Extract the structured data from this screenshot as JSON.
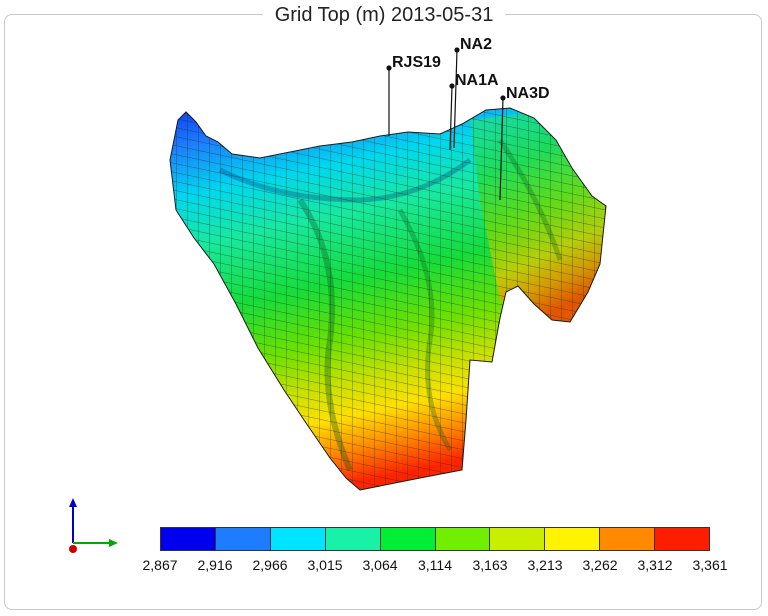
{
  "title": "Grid Top (m) 2013-05-31",
  "wells": [
    {
      "name": "RJS19"
    },
    {
      "name": "NA2"
    },
    {
      "name": "NA1A"
    },
    {
      "name": "NA3D"
    }
  ],
  "colorbar": {
    "colors": [
      "#0000ee",
      "#1e7dff",
      "#00e5ff",
      "#19f0a8",
      "#00ee35",
      "#72ee00",
      "#c9ee00",
      "#fff300",
      "#ff8a00",
      "#ff1d00"
    ],
    "ticks": [
      "2,867",
      "2,916",
      "2,966",
      "3,015",
      "3,064",
      "3,114",
      "3,163",
      "3,213",
      "3,262",
      "3,312",
      "3,361"
    ]
  },
  "axes_triad": {
    "x_color": "#00aa00",
    "y_color": "#0000cc",
    "origin_color": "#cc0000"
  }
}
